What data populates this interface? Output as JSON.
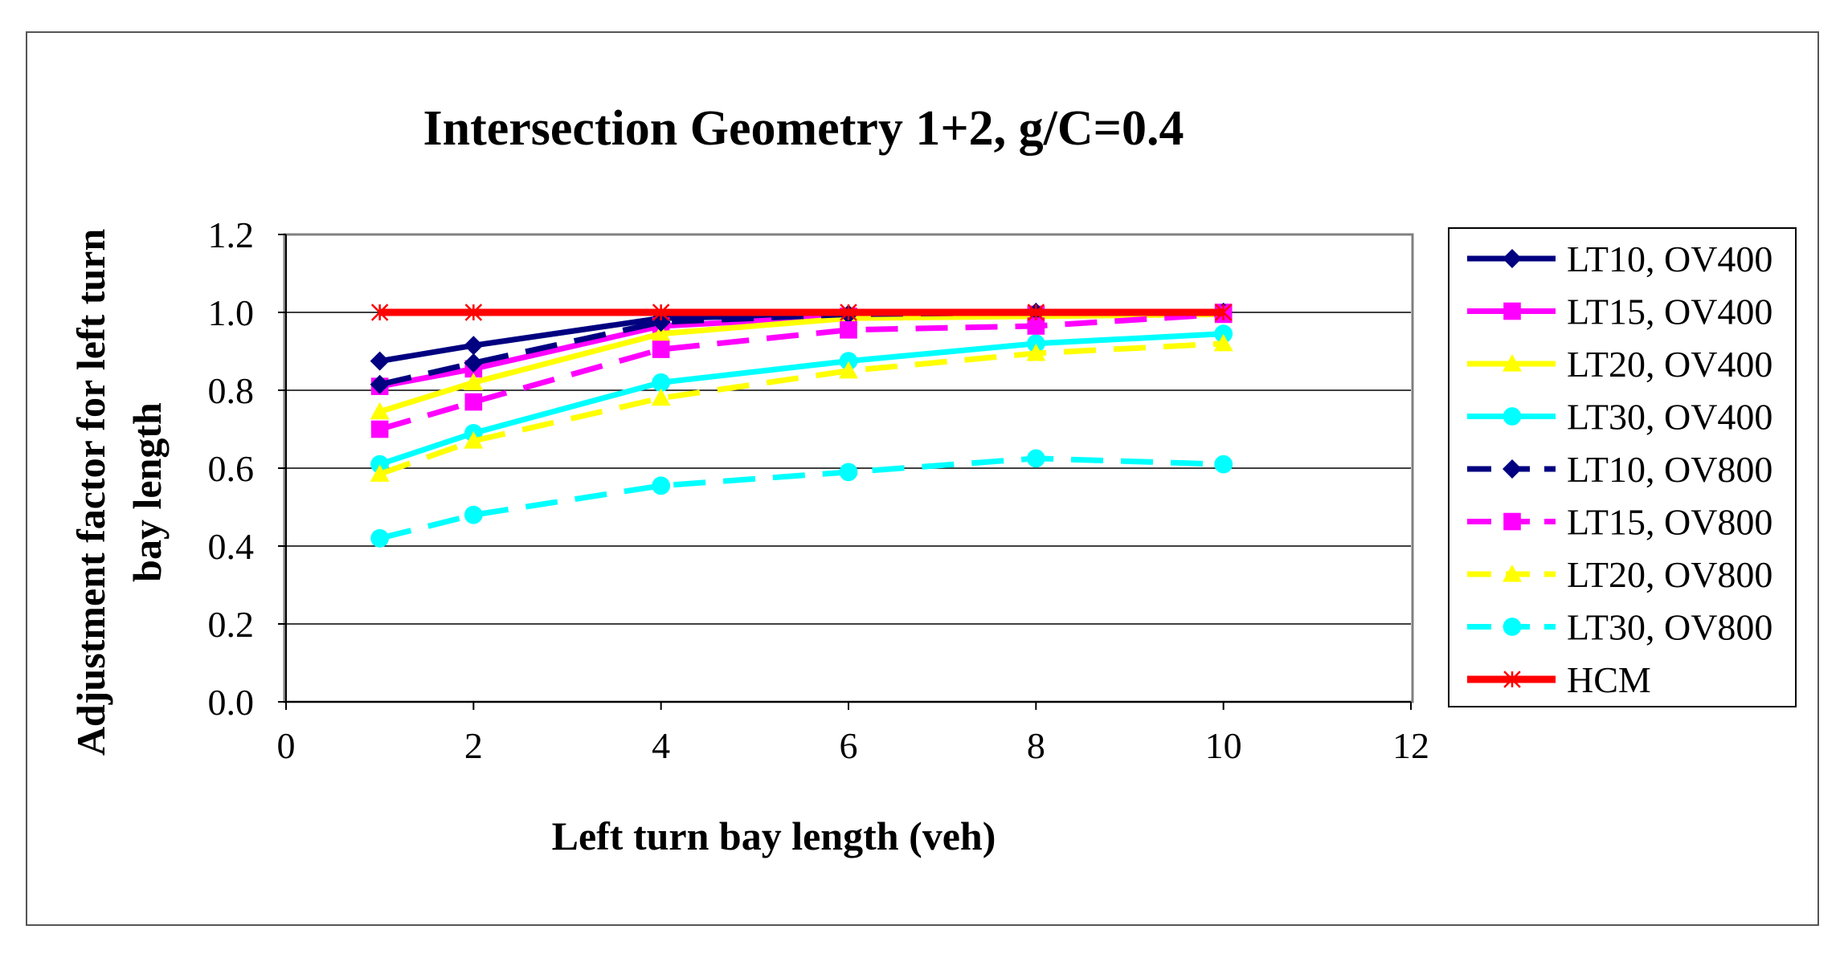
{
  "chart_data": {
    "type": "line",
    "title": "Intersection Geometry 1+2, g/C=0.4",
    "xlabel": "Left turn bay length (veh)",
    "ylabel_lines": [
      "Adjustment factor for left turn",
      "bay length"
    ],
    "xlim": [
      0,
      12
    ],
    "ylim": [
      0,
      1.2
    ],
    "xticks": [
      0,
      2,
      4,
      6,
      8,
      10,
      12
    ],
    "yticks": [
      0.0,
      0.2,
      0.4,
      0.6,
      0.8,
      1.0,
      1.2
    ],
    "ytick_labels": [
      "0.0",
      "0.2",
      "0.4",
      "0.6",
      "0.8",
      "1.0",
      "1.2"
    ],
    "grid": "horizontal",
    "legend_position": "right",
    "x": [
      1,
      2,
      4,
      6,
      8,
      10
    ],
    "series": [
      {
        "name": "LT10, OV400",
        "color": "#000080",
        "marker": "diamond",
        "dash": "solid",
        "values": [
          0.875,
          0.915,
          0.985,
          0.995,
          1.0,
          1.0
        ]
      },
      {
        "name": "LT15, OV400",
        "color": "#ff00ff",
        "marker": "square",
        "dash": "solid",
        "values": [
          0.81,
          0.855,
          0.965,
          0.99,
          0.995,
          1.0
        ]
      },
      {
        "name": "LT20, OV400",
        "color": "#ffff00",
        "marker": "triangle",
        "dash": "solid",
        "values": [
          0.745,
          0.82,
          0.945,
          0.985,
          0.99,
          0.995
        ]
      },
      {
        "name": "LT30, OV400",
        "color": "#00ffff",
        "marker": "circle",
        "dash": "solid",
        "values": [
          0.61,
          0.69,
          0.82,
          0.875,
          0.92,
          0.945
        ]
      },
      {
        "name": "LT10, OV800",
        "color": "#000080",
        "marker": "diamond",
        "dash": "dashed",
        "values": [
          0.815,
          0.87,
          0.975,
          0.995,
          1.0,
          1.0
        ]
      },
      {
        "name": "LT15, OV800",
        "color": "#ff00ff",
        "marker": "square",
        "dash": "dashed",
        "values": [
          0.7,
          0.77,
          0.905,
          0.955,
          0.965,
          0.995
        ]
      },
      {
        "name": "LT20, OV800",
        "color": "#ffff00",
        "marker": "triangle",
        "dash": "dashed",
        "values": [
          0.585,
          0.67,
          0.78,
          0.85,
          0.895,
          0.92
        ]
      },
      {
        "name": "LT30, OV800",
        "color": "#00ffff",
        "marker": "circle",
        "dash": "dashed",
        "values": [
          0.42,
          0.48,
          0.555,
          0.59,
          0.625,
          0.61
        ]
      },
      {
        "name": "HCM",
        "color": "#ff0000",
        "marker": "star",
        "dash": "solid",
        "values": [
          1.0,
          1.0,
          1.0,
          1.0,
          1.0,
          1.0
        ]
      }
    ]
  }
}
